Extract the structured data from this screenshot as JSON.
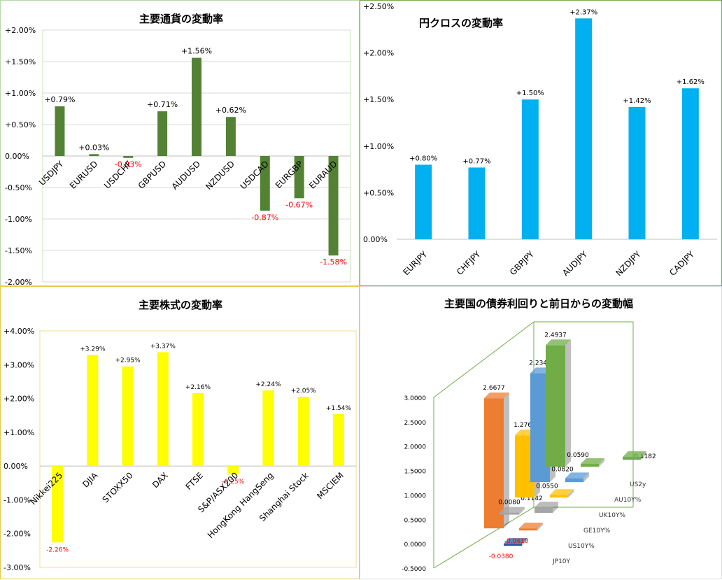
{
  "chart_data": [
    {
      "type": "bar",
      "title": "主要通貨の変動率",
      "categories": [
        "USDJPY",
        "EURUSD",
        "USDCHF",
        "GBPUSD",
        "AUDUSD",
        "NZDUSD",
        "USDCAD",
        "EURGBP",
        "EURAUD"
      ],
      "values": [
        0.79,
        0.03,
        -0.03,
        0.71,
        1.56,
        0.62,
        -0.87,
        -0.67,
        -1.58
      ],
      "labels": [
        "+0.79%",
        "+0.03%",
        "-0.03%",
        "+0.71%",
        "+1.56%",
        "+0.62%",
        "-0.87%",
        "-0.67%",
        "-1.58%"
      ],
      "yticks": [
        "+2.00%",
        "+1.50%",
        "+1.00%",
        "+0.50%",
        "0.00%",
        "-0.50%",
        "-1.00%",
        "-1.50%",
        "-2.00%"
      ],
      "ylim": [
        -2.0,
        2.0
      ],
      "grid": true,
      "color": "#548235",
      "negative_label_color": "#ff0000"
    },
    {
      "type": "bar",
      "title": "円クロスの変動率",
      "categories": [
        "EURJPY",
        "CHFJPY",
        "GBPJPY",
        "AUDJPY",
        "NZDJPY",
        "CADJPY"
      ],
      "values": [
        0.8,
        0.77,
        1.5,
        2.37,
        1.42,
        1.62
      ],
      "labels": [
        "+0.80%",
        "+0.77%",
        "+1.50%",
        "+2.37%",
        "+1.42%",
        "+1.62%"
      ],
      "yticks": [
        "+2.50%",
        "+2.00%",
        "+1.50%",
        "+1.00%",
        "+0.50%",
        "0.00%"
      ],
      "ylim": [
        0,
        2.5
      ],
      "grid": false,
      "color": "#00b0f0"
    },
    {
      "type": "bar",
      "title": "主要株式の変動率",
      "categories": [
        "Nikkei225",
        "DJIA",
        "STOXX50",
        "DAX",
        "FTSE",
        "S&P/ASX200",
        "HongKong HangSeng",
        "Shanghai Stock",
        "MSCIEM"
      ],
      "values": [
        -2.26,
        3.29,
        2.95,
        3.37,
        2.16,
        -0.25,
        2.24,
        2.05,
        1.54
      ],
      "labels": [
        "-2.26%",
        "+3.29%",
        "+2.95%",
        "+3.37%",
        "+2.16%",
        "-0.25%",
        "+2.24%",
        "+2.05%",
        "+1.54%"
      ],
      "yticks": [
        "+4.00%",
        "+3.00%",
        "+2.00%",
        "+1.00%",
        "0.00%",
        "-1.00%",
        "-2.00%",
        "-3.00%"
      ],
      "ylim": [
        -3.0,
        4.0
      ],
      "grid": false,
      "color": "#ffff00",
      "negative_label_color": "#ff0000"
    },
    {
      "type": "bar",
      "title": "主要国の債券利回りと前日からの変動幅",
      "series": [
        {
          "name": "JP10Y",
          "yield_label": "",
          "change_label": "-0.0380",
          "change": -0.038,
          "color": "#2f5597"
        },
        {
          "name": "US10Y%",
          "yield_label": "2.6677",
          "yield": 2.6677,
          "change_label": "-0.0410",
          "change": -0.041,
          "color": "#ed7d31"
        },
        {
          "name": "GE10Y%",
          "yield_label": "0.0080",
          "yield": 0.008,
          "change_label": "0.1142",
          "change": 0.1142,
          "color": "#a5a5a5"
        },
        {
          "name": "UK10Y%",
          "yield_label": "1.2760",
          "yield": 1.276,
          "change_label": "0.0550",
          "change": 0.055,
          "color": "#ffc000"
        },
        {
          "name": "AU10Y%",
          "yield_label": "2.2340",
          "yield": 2.234,
          "change_label": "0.0820",
          "change": 0.082,
          "color": "#5b9bd5"
        },
        {
          "name": "US2y",
          "yield_label": "2.4937",
          "yield": 2.4937,
          "change_label": "0.0590",
          "change": 0.059,
          "extra_label": "0.1182",
          "color": "#70ad47"
        }
      ],
      "yticks": [
        "3.0000",
        "2.5000",
        "2.0000",
        "1.5000",
        "1.0000",
        "0.5000",
        "0.0000",
        "-0.5000"
      ],
      "ylim": [
        -0.5,
        3.0
      ],
      "negative_label_color": "#ff0000"
    }
  ]
}
